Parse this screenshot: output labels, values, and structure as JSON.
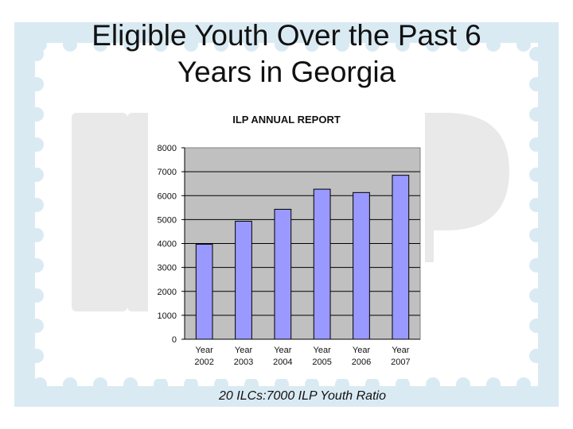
{
  "slide": {
    "title_line1": "Eligible Youth Over the Past 6",
    "title_line2": "Years in Georgia",
    "caption": "20 ILCs:7000 ILP Youth Ratio",
    "background_logo_text": "ILP"
  },
  "colors": {
    "bar_fill": "#9999ff",
    "bar_stroke": "#000000",
    "plot_background": "#c0c0c0",
    "stamp_border": "#daeaf3",
    "logo_letters": "#e9e9e9"
  },
  "chart_data": {
    "type": "bar",
    "title": "ILP ANNUAL REPORT",
    "categories": [
      [
        "Year",
        "2002"
      ],
      [
        "Year",
        "2003"
      ],
      [
        "Year",
        "2004"
      ],
      [
        "Year",
        "2005"
      ],
      [
        "Year",
        "2006"
      ],
      [
        "Year",
        "2007"
      ]
    ],
    "values": [
      3970,
      4930,
      5430,
      6270,
      6130,
      6850
    ],
    "ylim": [
      0,
      8000
    ],
    "yticks": [
      0,
      1000,
      2000,
      3000,
      4000,
      5000,
      6000,
      7000,
      8000
    ],
    "xlabel": "",
    "ylabel": "",
    "grid": true,
    "legend": "none"
  }
}
